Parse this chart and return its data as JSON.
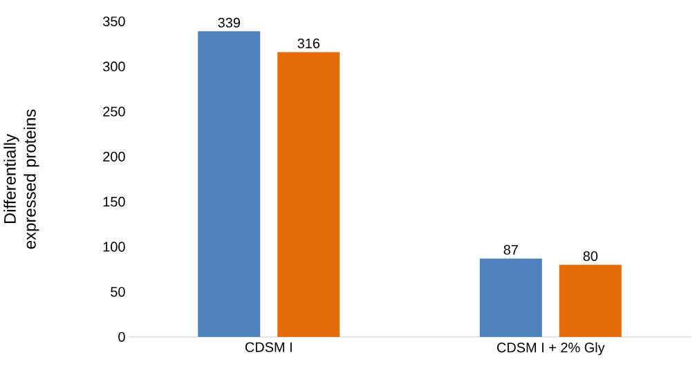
{
  "chart_data": {
    "type": "bar",
    "ylabel": "Differentially expressed proteins",
    "categories": [
      "CDSM I",
      "CDSM I + 2% Gly"
    ],
    "series": [
      {
        "color": "#4f81bd",
        "values": [
          339,
          87
        ]
      },
      {
        "color": "#e46c0a",
        "values": [
          316,
          80
        ]
      }
    ],
    "ylim": [
      0,
      350
    ],
    "yticks": [
      0,
      50,
      100,
      150,
      200,
      250,
      300,
      350
    ],
    "data_labels": true
  }
}
